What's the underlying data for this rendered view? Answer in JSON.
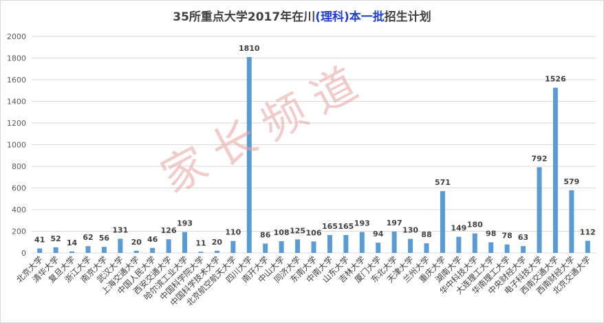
{
  "title_parts": {
    "prefix": "35所重点大学2017年在川",
    "highlight": "(理科)本一批",
    "suffix": "招生计划"
  },
  "watermark_text": "家长频道",
  "colors": {
    "bar": "#5b9bd5",
    "grid": "#d9d9d9",
    "axis_text": "#595959",
    "label_text": "#404040",
    "watermark": "#e8a0a0",
    "title_highlight": "#1f3fd1"
  },
  "chart_data": {
    "type": "bar",
    "title": "35所重点大学2017年在川(理科)本一批招生计划",
    "xlabel": "",
    "ylabel": "",
    "ylim": [
      0,
      2000
    ],
    "yticks": [
      0,
      200,
      400,
      600,
      800,
      1000,
      1200,
      1400,
      1600,
      1800,
      2000
    ],
    "grid": true,
    "legend": "none",
    "categories": [
      "北京大学",
      "清华大学",
      "复旦大学",
      "浙江大学",
      "南京大学",
      "武汉大学",
      "上海交通大学",
      "中国人民大学",
      "西安交通大学",
      "哈尔滨工业大学",
      "中国科学院大学",
      "中国科学技术大学",
      "北京航空航天大学",
      "四川大学",
      "南开大学",
      "中山大学",
      "同济大学",
      "东南大学",
      "中南大学",
      "山东大学",
      "吉林大学",
      "厦门大学",
      "东北大学",
      "天津大学",
      "兰州大学",
      "重庆大学",
      "湖南大学",
      "华中科技大学",
      "大连理工大学",
      "华南理工大学",
      "中央财经大学",
      "电子科技大学",
      "西南交通大学",
      "西南财经大学",
      "北京交通大学"
    ],
    "values": [
      41,
      52,
      14,
      62,
      56,
      131,
      20,
      46,
      126,
      193,
      11,
      20,
      110,
      1810,
      86,
      108,
      125,
      106,
      165,
      165,
      193,
      94,
      197,
      130,
      88,
      571,
      149,
      180,
      98,
      78,
      63,
      792,
      1526,
      579,
      112
    ]
  }
}
